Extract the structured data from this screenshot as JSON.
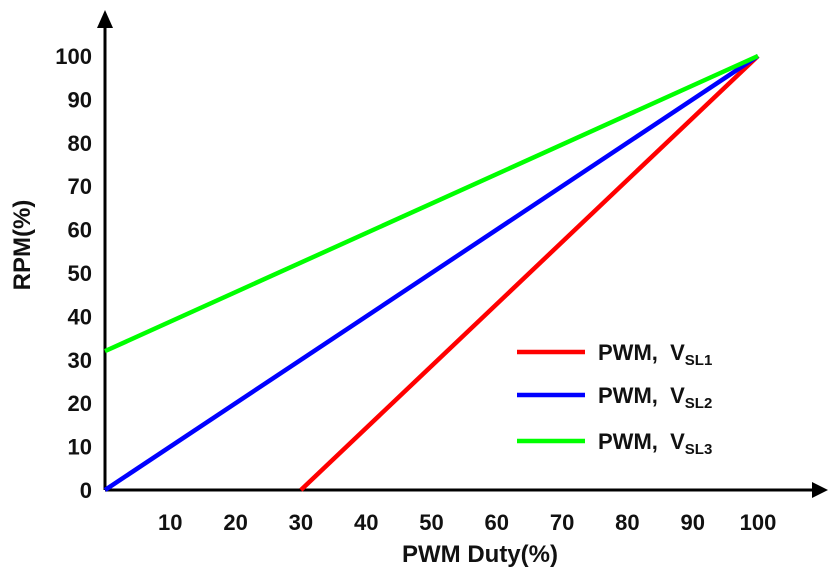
{
  "chart_data": {
    "type": "line",
    "xlabel": "PWM Duty(%)",
    "ylabel": "RPM(%)",
    "xlim": [
      0,
      100
    ],
    "ylim": [
      0,
      100
    ],
    "x_ticks": [
      "10",
      "20",
      "30",
      "40",
      "50",
      "60",
      "70",
      "80",
      "90",
      "100"
    ],
    "y_ticks": [
      "0",
      "10",
      "20",
      "30",
      "40",
      "50",
      "60",
      "70",
      "80",
      "90",
      "100"
    ],
    "grid": false,
    "legend_position": "bottom-right",
    "series": [
      {
        "name": "PWM,  V",
        "sub": "SL1",
        "color": "#ff0000",
        "x": [
          30,
          100
        ],
        "y": [
          0,
          100
        ]
      },
      {
        "name": "PWM,  V",
        "sub": "SL2",
        "color": "#0000ff",
        "x": [
          0,
          100
        ],
        "y": [
          0,
          100
        ]
      },
      {
        "name": "PWM,  V",
        "sub": "SL3",
        "color": "#00ff00",
        "x": [
          0,
          100
        ],
        "y": [
          32,
          100
        ]
      }
    ]
  }
}
